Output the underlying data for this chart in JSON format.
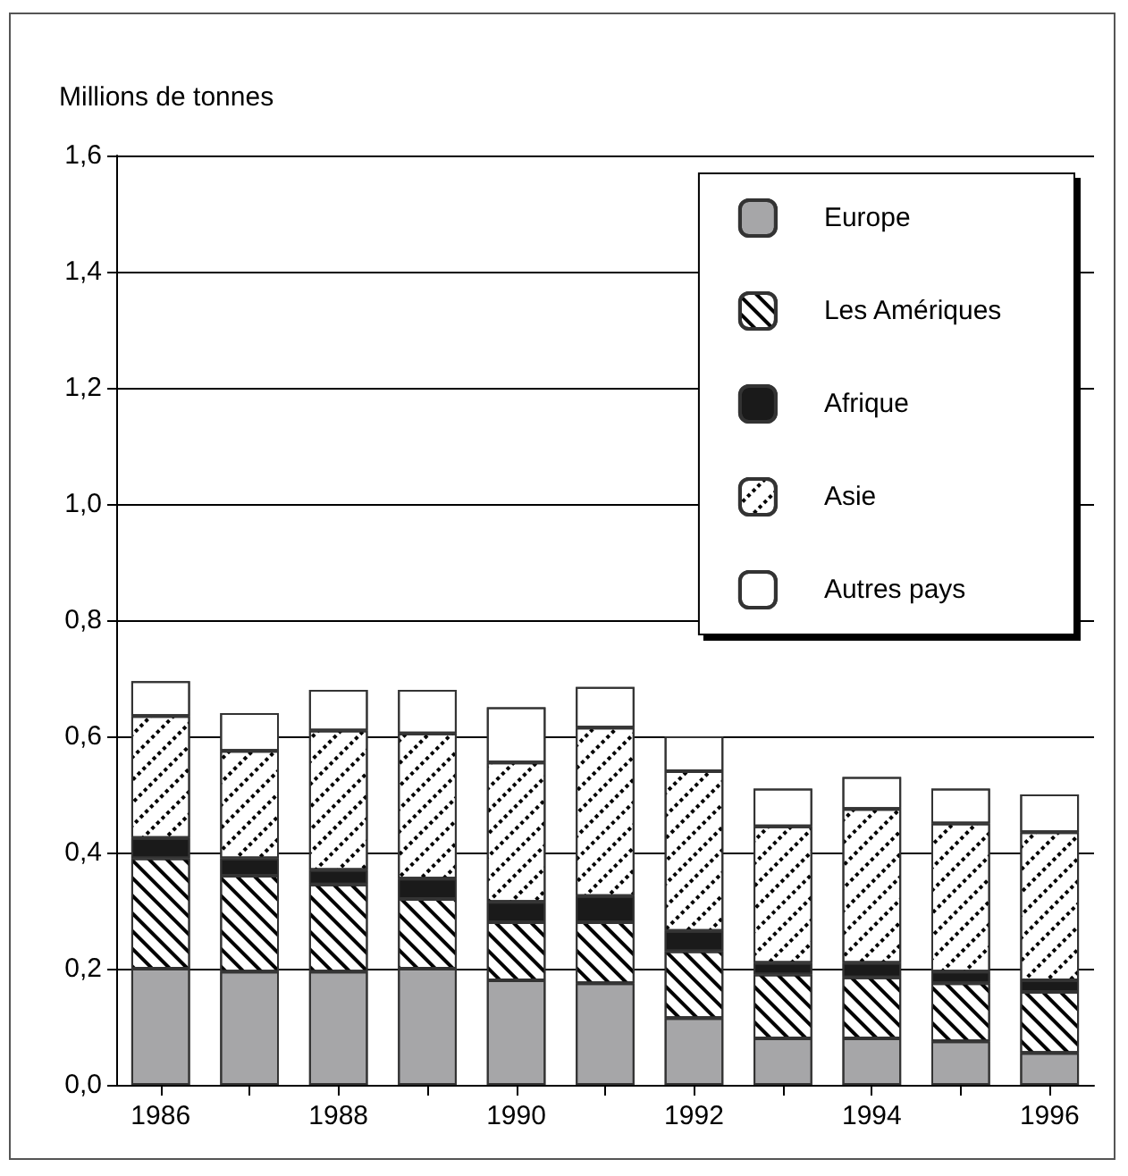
{
  "chart_data": {
    "type": "bar",
    "stacked": true,
    "ylabel": "Millions de tonnes",
    "categories": [
      "1986",
      null,
      "1988",
      null,
      "1990",
      null,
      "1992",
      null,
      "1994",
      null,
      "1996"
    ],
    "series": [
      {
        "name": "Europe",
        "color": "#a6a6a8",
        "values": [
          0.2,
          0.195,
          0.195,
          0.2,
          0.18,
          0.175,
          0.115,
          0.08,
          0.08,
          0.075,
          0.055
        ]
      },
      {
        "name": "Les Amériques",
        "color": "#ffffff",
        "values": [
          0.19,
          0.165,
          0.15,
          0.12,
          0.1,
          0.105,
          0.115,
          0.11,
          0.105,
          0.1,
          0.105
        ]
      },
      {
        "name": "Afrique",
        "color": "#1a1a1a",
        "values": [
          0.035,
          0.03,
          0.025,
          0.035,
          0.035,
          0.045,
          0.035,
          0.02,
          0.025,
          0.02,
          0.02
        ]
      },
      {
        "name": "Asie",
        "color": "#ffffff",
        "values": [
          0.21,
          0.185,
          0.24,
          0.25,
          0.24,
          0.29,
          0.275,
          0.235,
          0.265,
          0.255,
          0.255
        ]
      },
      {
        "name": "Autres pays",
        "color": "#ffffff",
        "values": [
          0.06,
          0.065,
          0.07,
          0.075,
          0.095,
          0.07,
          0.06,
          0.065,
          0.055,
          0.06,
          0.065
        ]
      }
    ],
    "ylim": [
      0,
      1.6
    ],
    "yticks": [
      {
        "value": 0,
        "label": "0,0"
      },
      {
        "value": 0.2,
        "label": "0,2"
      },
      {
        "value": 0.4,
        "label": "0,4"
      },
      {
        "value": 0.6,
        "label": "0,6"
      },
      {
        "value": 0.8,
        "label": "0,8"
      },
      {
        "value": 1.0,
        "label": "1,0"
      },
      {
        "value": 1.2,
        "label": "1,2"
      },
      {
        "value": 1.4,
        "label": "1,4"
      },
      {
        "value": 1.6,
        "label": "1,6"
      }
    ],
    "grid": "y",
    "legend": "top right"
  }
}
